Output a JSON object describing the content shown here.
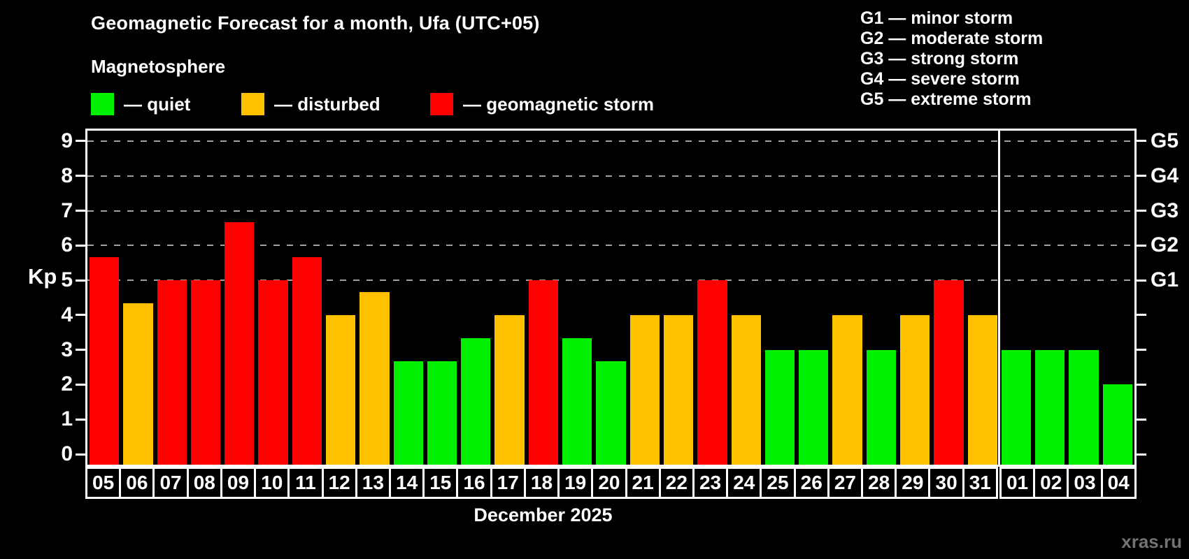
{
  "title": "Geomagnetic Forecast for a month, Ufa (UTC+05)",
  "subtitle": "Magnetosphere",
  "legend": {
    "items": [
      {
        "status": "quiet",
        "label": "— quiet",
        "color": "#00f000"
      },
      {
        "status": "disturbed",
        "label": "— disturbed",
        "color": "#ffc000"
      },
      {
        "status": "storm",
        "label": "— geomagnetic storm",
        "color": "#ff0000"
      }
    ]
  },
  "g_legend": [
    "G1 — minor storm",
    "G2 — moderate storm",
    "G3 — strong storm",
    "G4 — severe storm",
    "G5 — extreme storm"
  ],
  "axis": {
    "kp_label": "Kp"
  },
  "x_axis": {
    "month_label": "December 2025"
  },
  "watermark": "xras.ru",
  "chart_data": {
    "type": "bar",
    "title": "Geomagnetic Forecast for a month, Ufa (UTC+05)",
    "ylabel": "Kp",
    "ylim": [
      0,
      9
    ],
    "y_ticks": [
      0,
      1,
      2,
      3,
      4,
      5,
      6,
      7,
      8,
      9
    ],
    "gridlines": [
      5,
      6,
      7,
      8,
      9
    ],
    "grid_style": "dashed",
    "right_axis": [
      {
        "text": "G1",
        "value": 5
      },
      {
        "text": "G2",
        "value": 6
      },
      {
        "text": "G3",
        "value": 7
      },
      {
        "text": "G4",
        "value": 8
      },
      {
        "text": "G5",
        "value": 9
      }
    ],
    "categories": [
      "05",
      "06",
      "07",
      "08",
      "09",
      "10",
      "11",
      "12",
      "13",
      "14",
      "15",
      "16",
      "17",
      "18",
      "19",
      "20",
      "21",
      "22",
      "23",
      "24",
      "25",
      "26",
      "27",
      "28",
      "29",
      "30",
      "31",
      "01",
      "02",
      "03",
      "04"
    ],
    "values": [
      5.67,
      4.33,
      5,
      5,
      6.67,
      5,
      5.67,
      4,
      4.67,
      2.67,
      2.67,
      3.33,
      4,
      5,
      3.33,
      2.67,
      4,
      4,
      5,
      4,
      3,
      3,
      4,
      3,
      4,
      5,
      4,
      3,
      3,
      3,
      2
    ],
    "statuses": [
      "storm",
      "disturbed",
      "storm",
      "storm",
      "storm",
      "storm",
      "storm",
      "disturbed",
      "disturbed",
      "quiet",
      "quiet",
      "quiet",
      "disturbed",
      "storm",
      "quiet",
      "quiet",
      "disturbed",
      "disturbed",
      "storm",
      "disturbed",
      "quiet",
      "quiet",
      "disturbed",
      "quiet",
      "disturbed",
      "storm",
      "disturbed",
      "quiet",
      "quiet",
      "quiet",
      "quiet"
    ],
    "month_divider_after_index": 26
  }
}
